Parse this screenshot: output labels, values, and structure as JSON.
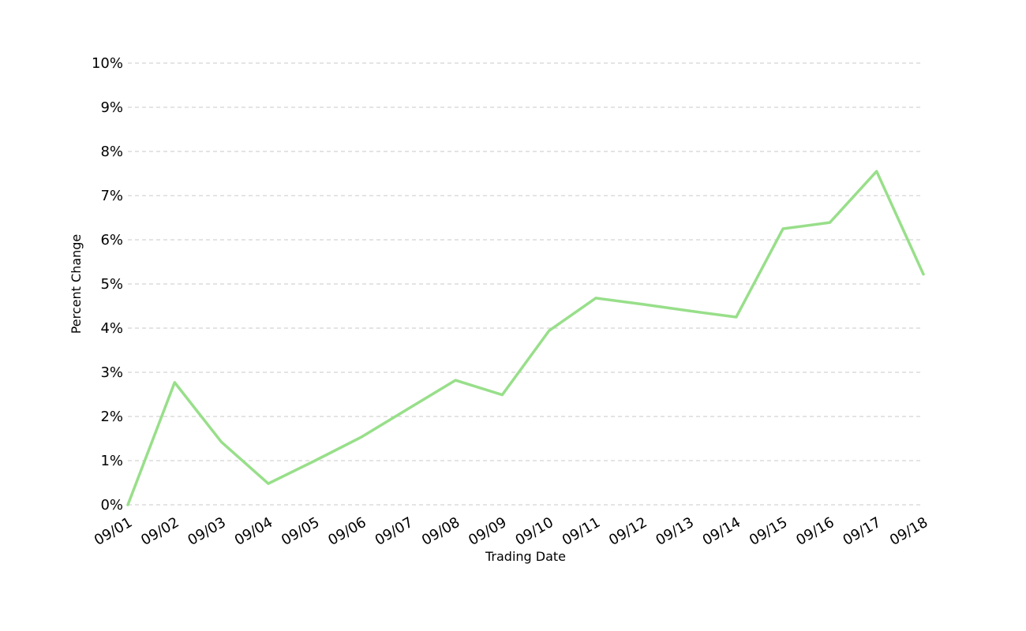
{
  "chart_data": {
    "type": "line",
    "title": "",
    "xlabel": "Trading Date",
    "ylabel": "Percent Change",
    "x": [
      "09/01",
      "09/02",
      "09/03",
      "09/04",
      "09/05",
      "09/06",
      "09/07",
      "09/08",
      "09/09",
      "09/10",
      "09/11",
      "09/12",
      "09/13",
      "09/14",
      "09/15",
      "09/16",
      "09/17",
      "09/18"
    ],
    "series": [
      {
        "values": [
          0.0,
          2.77,
          1.42,
          0.48,
          1.0,
          1.54,
          2.18,
          2.82,
          2.49,
          3.94,
          4.68,
          4.54,
          4.39,
          4.25,
          6.25,
          6.39,
          7.55,
          5.22
        ],
        "color": "#98df8a"
      }
    ],
    "ylim": [
      0,
      10
    ],
    "yticks": [
      0,
      1,
      2,
      3,
      4,
      5,
      6,
      7,
      8,
      9,
      10
    ],
    "ytick_labels": [
      "0%",
      "1%",
      "2%",
      "3%",
      "4%",
      "5%",
      "6%",
      "7%",
      "8%",
      "9%",
      "10%"
    ],
    "grid": "horizontal dashed",
    "legend": "none"
  }
}
